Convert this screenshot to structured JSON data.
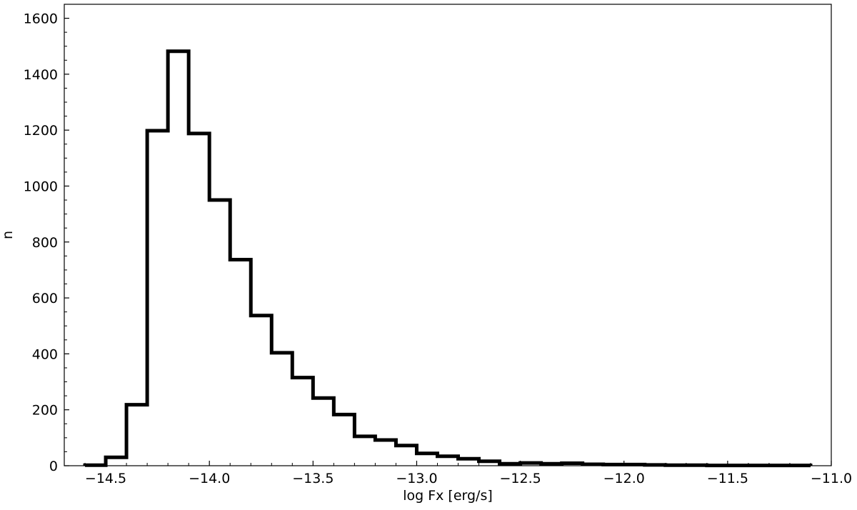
{
  "chart_data": {
    "type": "histogram",
    "title": "",
    "xlabel": "log Fx [erg/s]",
    "ylabel": "n",
    "xlim": [
      -14.7,
      -11.0
    ],
    "ylim": [
      0,
      1650
    ],
    "xticks": [
      -14.5,
      -14.0,
      -13.5,
      -13.0,
      -12.5,
      -12.0,
      -11.5,
      -11.0
    ],
    "xtick_labels": [
      "−14.5",
      "−14.0",
      "−13.5",
      "−13.0",
      "−12.5",
      "−12.0",
      "−11.5",
      "−11.0"
    ],
    "yticks": [
      0,
      200,
      400,
      600,
      800,
      1000,
      1200,
      1400,
      1600
    ],
    "ytick_labels": [
      "0",
      "200",
      "400",
      "600",
      "800",
      "1000",
      "1200",
      "1400",
      "1600"
    ],
    "grid": false,
    "line_color": "#000000",
    "bin_edges": [
      -14.6,
      -14.5,
      -14.4,
      -14.3,
      -14.2,
      -14.1,
      -14.0,
      -13.9,
      -13.8,
      -13.7,
      -13.6,
      -13.5,
      -13.4,
      -13.3,
      -13.2,
      -13.1,
      -13.0,
      -12.9,
      -12.8,
      -12.7,
      -12.6,
      -12.5,
      -12.4,
      -12.3,
      -12.2,
      -12.1,
      -12.0,
      -11.9,
      -11.8,
      -11.7,
      -11.6,
      -11.5,
      -11.4,
      -11.3,
      -11.2,
      -11.1
    ],
    "counts": [
      2,
      30,
      218,
      1198,
      1482,
      1188,
      950,
      737,
      537,
      404,
      315,
      242,
      183,
      105,
      92,
      72,
      44,
      34,
      25,
      16,
      7,
      10,
      7,
      9,
      5,
      4,
      4,
      3,
      2,
      2,
      1,
      1,
      1,
      1,
      1
    ]
  }
}
